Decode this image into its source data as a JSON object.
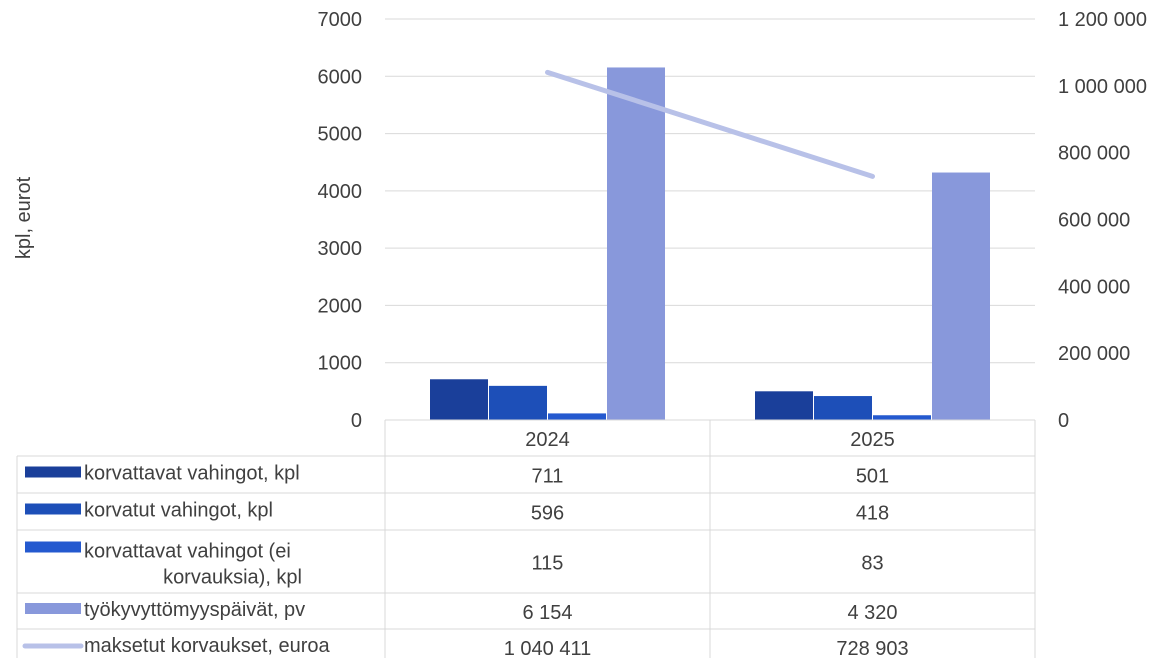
{
  "chart_data": {
    "type": "bar",
    "categories": [
      "2024",
      "2025"
    ],
    "ylabel": "kpl, eurot",
    "ylim": [
      0,
      7000
    ],
    "y_ticks": [
      "0",
      "1000",
      "2000",
      "3000",
      "4000",
      "5000",
      "6000",
      "7000"
    ],
    "y2lim": [
      0,
      1200000
    ],
    "y2_ticks": [
      "0",
      "200 000",
      "400 000",
      "600 000",
      "800 000",
      "1 000 000",
      "1 200 000"
    ],
    "grid": true,
    "data_table": true,
    "series": [
      {
        "name": "korvattavat vahingot, kpl",
        "kind": "bar",
        "axis": "left",
        "color": "#1a3f9a",
        "values": [
          711,
          501
        ],
        "labels": [
          "711",
          "501"
        ]
      },
      {
        "name": "korvatut vahingot, kpl",
        "kind": "bar",
        "axis": "left",
        "color": "#1d4fb8",
        "values": [
          596,
          418
        ],
        "labels": [
          "596",
          "418"
        ]
      },
      {
        "name": "korvattavat vahingot (ei korvauksia), kpl",
        "name_lines": [
          "korvattavat vahingot (ei",
          "korvauksia), kpl"
        ],
        "kind": "bar",
        "axis": "left",
        "color": "#2459cf",
        "values": [
          115,
          83
        ],
        "labels": [
          "115",
          "83"
        ]
      },
      {
        "name": "työkyvyttömyyspäivät, pv",
        "kind": "bar",
        "axis": "left",
        "color": "#8898db",
        "values": [
          6154,
          4320
        ],
        "labels": [
          "6 154",
          "4 320"
        ]
      },
      {
        "name": "maksetut korvaukset, euroa",
        "kind": "line",
        "axis": "right",
        "color": "#b8c1e8",
        "values": [
          1040411,
          728903
        ],
        "labels": [
          "1 040 411",
          "728 903"
        ]
      }
    ]
  }
}
